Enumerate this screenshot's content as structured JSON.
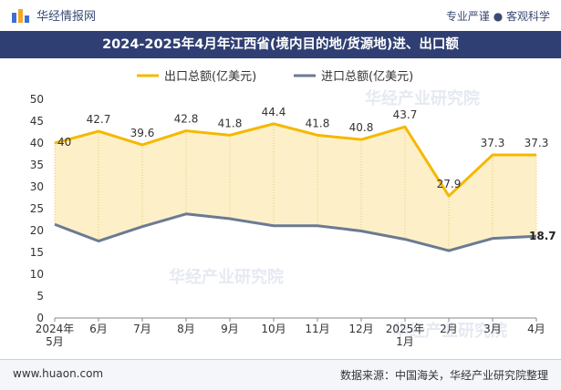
{
  "header": {
    "brand": "华经情报网",
    "tagline": "专业严谨 ● 客观科学"
  },
  "title_bar": {
    "title": "2024-2025年4月年江西省(境内目的地/货源地)进、出口额"
  },
  "footer": {
    "site": "www.huaon.com",
    "source": "数据来源：中国海关，华经产业研究院整理"
  },
  "watermark": "华经产业研究院",
  "colors": {
    "export": "#f5b800",
    "import": "#6b7a93",
    "fill": "#fdf0c8",
    "title_bg": "#2f3f73"
  },
  "chart_data": {
    "type": "line",
    "categories": [
      "2024年\n5月",
      "6月",
      "7月",
      "8月",
      "9月",
      "10月",
      "11月",
      "12月",
      "2025年\n1月",
      "2月",
      "3月",
      "4月"
    ],
    "series": [
      {
        "name": "出口总额(亿美元)",
        "values": [
          40,
          42.7,
          39.6,
          42.8,
          41.8,
          44.4,
          41.8,
          40.8,
          43.7,
          27.9,
          37.3,
          37.3
        ],
        "labels": [
          "40",
          "42.7",
          "39.6",
          "42.8",
          "41.8",
          "44.4",
          "41.8",
          "40.8",
          "43.7",
          "27.9",
          "37.3",
          "37.3"
        ]
      },
      {
        "name": "进口总额(亿美元)",
        "values": [
          21.4,
          17.6,
          20.9,
          23.8,
          22.7,
          21.1,
          21.1,
          19.9,
          18.0,
          15.4,
          18.2,
          18.7
        ],
        "labels": [
          "",
          "",
          "",
          "",
          "",
          "",
          "",
          "",
          "",
          "",
          "",
          "18.7"
        ]
      }
    ],
    "ylim": [
      0,
      50
    ],
    "yticks": [
      0,
      5,
      10,
      15,
      20,
      25,
      30,
      35,
      40,
      45,
      50
    ],
    "grid": false,
    "legend_position": "top"
  }
}
